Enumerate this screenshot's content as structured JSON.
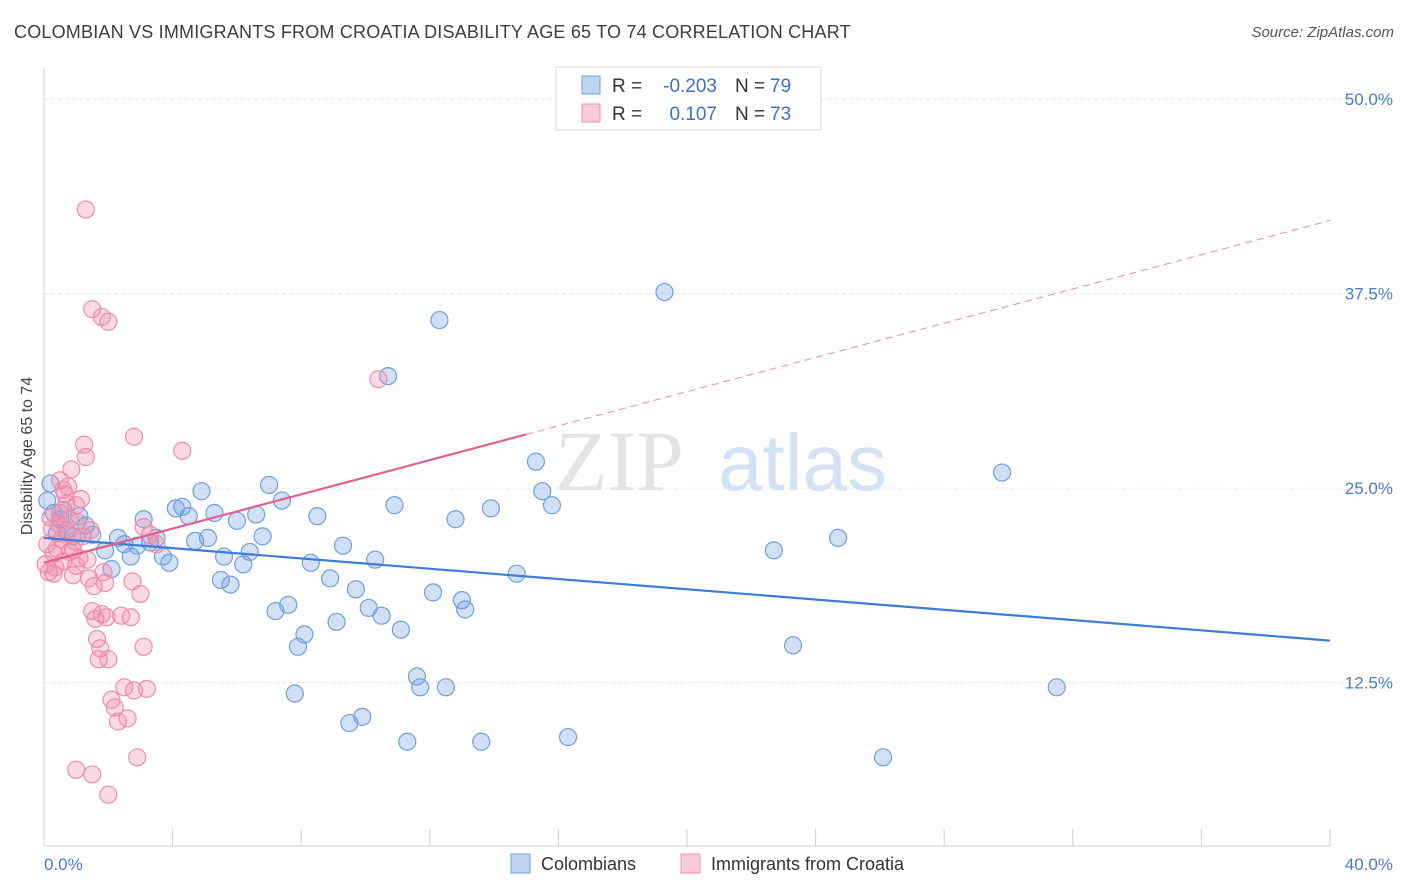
{
  "header": {
    "title": "COLOMBIAN VS IMMIGRANTS FROM CROATIA DISABILITY AGE 65 TO 74 CORRELATION CHART",
    "source": "Source: ZipAtlas.com"
  },
  "watermark": {
    "zip": "ZIP",
    "atlas": "atlas"
  },
  "legend": {
    "r_label": "R =",
    "n_label": "N =",
    "rows": [
      {
        "r": "-0.203",
        "n": "79",
        "color": "#6fa0e0"
      },
      {
        "r": "0.107",
        "n": "73",
        "color": "#f08cab"
      }
    ]
  },
  "chart_data": {
    "type": "scatter",
    "title": "COLOMBIAN VS IMMIGRANTS FROM CROATIA DISABILITY AGE 65 TO 74 CORRELATION CHART",
    "xlabel": "",
    "ylabel": "Disability Age 65 to 74",
    "xlim": [
      0,
      40
    ],
    "ylim": [
      2,
      52
    ],
    "x_tick_labels": [
      "0.0%",
      "40.0%"
    ],
    "y_ticks": [
      12.5,
      25.0,
      37.5,
      50.0
    ],
    "y_tick_labels": [
      "12.5%",
      "25.0%",
      "37.5%",
      "50.0%"
    ],
    "series": [
      {
        "name": "Colombians",
        "color": "#6fa0e0",
        "line_color": "#3b7dd8",
        "trend": {
          "x": [
            0,
            40
          ],
          "y": [
            21.8,
            15.2
          ],
          "dashed_from": null
        },
        "points": [
          [
            0.1,
            24.2
          ],
          [
            0.2,
            25.3
          ],
          [
            0.3,
            23.4
          ],
          [
            0.4,
            22.1
          ],
          [
            0.5,
            23.0
          ],
          [
            0.6,
            23.6
          ],
          [
            0.7,
            22.3
          ],
          [
            0.9,
            21.9
          ],
          [
            1.1,
            23.2
          ],
          [
            1.3,
            22.6
          ],
          [
            1.5,
            22.0
          ],
          [
            1.9,
            21.0
          ],
          [
            2.1,
            19.8
          ],
          [
            2.3,
            21.8
          ],
          [
            2.5,
            21.4
          ],
          [
            2.7,
            20.6
          ],
          [
            2.9,
            21.3
          ],
          [
            3.1,
            23.0
          ],
          [
            3.3,
            21.5
          ],
          [
            3.5,
            21.8
          ],
          [
            3.7,
            20.6
          ],
          [
            3.9,
            20.2
          ],
          [
            4.1,
            23.7
          ],
          [
            4.3,
            23.8
          ],
          [
            4.5,
            23.2
          ],
          [
            4.7,
            21.6
          ],
          [
            4.9,
            24.8
          ],
          [
            5.1,
            21.8
          ],
          [
            5.3,
            23.4
          ],
          [
            5.5,
            19.1
          ],
          [
            5.6,
            20.6
          ],
          [
            5.8,
            18.8
          ],
          [
            6.0,
            22.9
          ],
          [
            6.2,
            20.1
          ],
          [
            6.4,
            20.9
          ],
          [
            6.6,
            23.3
          ],
          [
            6.8,
            21.9
          ],
          [
            7.0,
            25.2
          ],
          [
            7.2,
            17.1
          ],
          [
            7.4,
            24.2
          ],
          [
            7.6,
            17.5
          ],
          [
            7.8,
            11.8
          ],
          [
            7.9,
            14.8
          ],
          [
            8.1,
            15.6
          ],
          [
            8.3,
            20.2
          ],
          [
            8.5,
            23.2
          ],
          [
            8.9,
            19.2
          ],
          [
            9.1,
            16.4
          ],
          [
            9.3,
            21.3
          ],
          [
            9.5,
            9.9
          ],
          [
            9.7,
            18.5
          ],
          [
            9.9,
            10.3
          ],
          [
            10.1,
            17.3
          ],
          [
            10.3,
            20.4
          ],
          [
            10.5,
            16.8
          ],
          [
            10.7,
            32.2
          ],
          [
            10.9,
            23.9
          ],
          [
            11.1,
            15.9
          ],
          [
            11.3,
            8.7
          ],
          [
            11.6,
            12.9
          ],
          [
            11.7,
            12.2
          ],
          [
            12.1,
            18.3
          ],
          [
            12.3,
            35.8
          ],
          [
            12.5,
            12.2
          ],
          [
            12.8,
            23.0
          ],
          [
            13.0,
            17.8
          ],
          [
            13.1,
            17.2
          ],
          [
            13.6,
            8.7
          ],
          [
            13.9,
            23.7
          ],
          [
            14.7,
            19.5
          ],
          [
            15.3,
            26.7
          ],
          [
            15.5,
            24.8
          ],
          [
            15.8,
            23.9
          ],
          [
            16.3,
            9.0
          ],
          [
            19.3,
            37.6
          ],
          [
            22.7,
            21.0
          ],
          [
            23.3,
            14.9
          ],
          [
            24.7,
            21.8
          ],
          [
            26.1,
            7.7
          ],
          [
            29.8,
            26.0
          ],
          [
            31.5,
            12.2
          ]
        ]
      },
      {
        "name": "Immigrants from Croatia",
        "color": "#f08cab",
        "line_color": "#e0608e",
        "trend": {
          "x": [
            0,
            40
          ],
          "y": [
            20.2,
            42.2
          ],
          "dashed_from": 15.0
        },
        "points": [
          [
            0.05,
            20.1
          ],
          [
            0.1,
            21.4
          ],
          [
            0.15,
            19.6
          ],
          [
            0.2,
            23.1
          ],
          [
            0.25,
            22.4
          ],
          [
            0.3,
            20.8
          ],
          [
            0.35,
            19.9
          ],
          [
            0.4,
            21.1
          ],
          [
            0.45,
            22.7
          ],
          [
            0.5,
            23.4
          ],
          [
            0.55,
            21.7
          ],
          [
            0.6,
            20.3
          ],
          [
            0.65,
            24.6
          ],
          [
            0.7,
            22.1
          ],
          [
            0.75,
            25.1
          ],
          [
            0.8,
            20.9
          ],
          [
            0.85,
            26.2
          ],
          [
            0.9,
            19.4
          ],
          [
            0.95,
            21.6
          ],
          [
            1.0,
            23.9
          ],
          [
            1.05,
            22.8
          ],
          [
            1.1,
            20.5
          ],
          [
            1.15,
            24.3
          ],
          [
            1.2,
            21.9
          ],
          [
            1.25,
            27.8
          ],
          [
            1.3,
            27.0
          ],
          [
            1.35,
            20.4
          ],
          [
            1.4,
            19.2
          ],
          [
            1.45,
            22.3
          ],
          [
            1.5,
            17.1
          ],
          [
            1.55,
            18.7
          ],
          [
            1.6,
            16.6
          ],
          [
            1.65,
            15.3
          ],
          [
            1.7,
            14.0
          ],
          [
            1.75,
            14.7
          ],
          [
            1.8,
            16.9
          ],
          [
            1.85,
            19.6
          ],
          [
            1.9,
            18.9
          ],
          [
            1.95,
            16.7
          ],
          [
            2.0,
            14.0
          ],
          [
            2.1,
            11.4
          ],
          [
            2.2,
            10.9
          ],
          [
            2.3,
            10.0
          ],
          [
            2.4,
            16.8
          ],
          [
            2.5,
            12.2
          ],
          [
            2.6,
            10.2
          ],
          [
            2.7,
            16.7
          ],
          [
            2.75,
            19.0
          ],
          [
            2.8,
            12.0
          ],
          [
            2.9,
            7.7
          ],
          [
            3.0,
            18.2
          ],
          [
            3.1,
            14.8
          ],
          [
            3.2,
            12.1
          ],
          [
            1.0,
            6.9
          ],
          [
            1.5,
            6.6
          ],
          [
            2.0,
            5.3
          ],
          [
            1.3,
            42.9
          ],
          [
            1.5,
            36.5
          ],
          [
            1.8,
            36.0
          ],
          [
            2.0,
            35.7
          ],
          [
            2.8,
            28.3
          ],
          [
            4.3,
            27.4
          ],
          [
            3.1,
            22.5
          ],
          [
            3.3,
            22.0
          ],
          [
            3.5,
            21.4
          ],
          [
            0.5,
            25.5
          ],
          [
            0.6,
            24.9
          ],
          [
            0.7,
            24.0
          ],
          [
            0.8,
            23.0
          ],
          [
            0.9,
            21.0
          ],
          [
            1.0,
            20.0
          ],
          [
            10.4,
            32.0
          ],
          [
            0.3,
            19.5
          ]
        ]
      }
    ]
  },
  "bottom_legend": {
    "items": [
      {
        "label": "Colombians",
        "color": "#6fa0e0"
      },
      {
        "label": "Immigrants from Croatia",
        "color": "#f08cab"
      }
    ]
  }
}
